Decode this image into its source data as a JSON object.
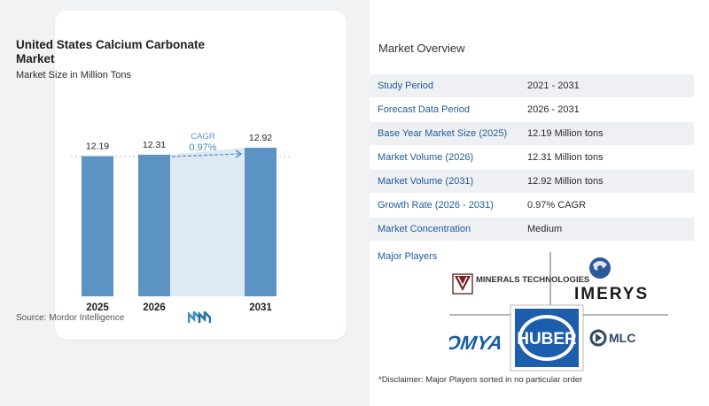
{
  "chart": {
    "title": "United States Calcium Carbonate Market",
    "subtitle": "Market Size in Million Tons",
    "source": "Source:  Mordor Intelligence",
    "cagr_label": "CAGR",
    "cagr_value": "0.97%"
  },
  "chart_data": {
    "type": "bar",
    "categories": [
      "2025",
      "2026",
      "2031"
    ],
    "values": [
      12.19,
      12.31,
      12.92
    ],
    "value_labels": [
      "12.19",
      "12.31",
      "12.92"
    ],
    "title": "United States Calcium Carbonate Market",
    "subtitle": "Market Size in Million Tons",
    "xlabel": "",
    "ylabel": "",
    "annotation": "CAGR 0.97%",
    "bar_color": "#5b93c4",
    "shade_color": "#dde9f3"
  },
  "overview": {
    "title": "Market Overview",
    "rows": [
      {
        "label": "Study Period",
        "value": "2021 - 2031"
      },
      {
        "label": "Forecast Data Period",
        "value": "2026 - 2031"
      },
      {
        "label": "Base Year Market Size (2025)",
        "value": "12.19 Million tons"
      },
      {
        "label": "Market Volume (2026)",
        "value": "12.31 Million tons"
      },
      {
        "label": "Market Volume (2031)",
        "value": "12.92 Million tons"
      },
      {
        "label": "Growth Rate (2026 - 2031)",
        "value": "0.97% CAGR"
      },
      {
        "label": "Market Concentration",
        "value": "Medium"
      }
    ],
    "players_title": "Major Players",
    "players": [
      "MINERALS TECHNOLOGIES",
      "IMERYS",
      "OMYA",
      "HUBER",
      "MLC"
    ],
    "disclaimer": "*Disclaimer: Major Players sorted in no particular order"
  },
  "colors": {
    "accent": "#1f5a9a",
    "bar": "#5b93c4",
    "cagr": "#5b93c4"
  }
}
